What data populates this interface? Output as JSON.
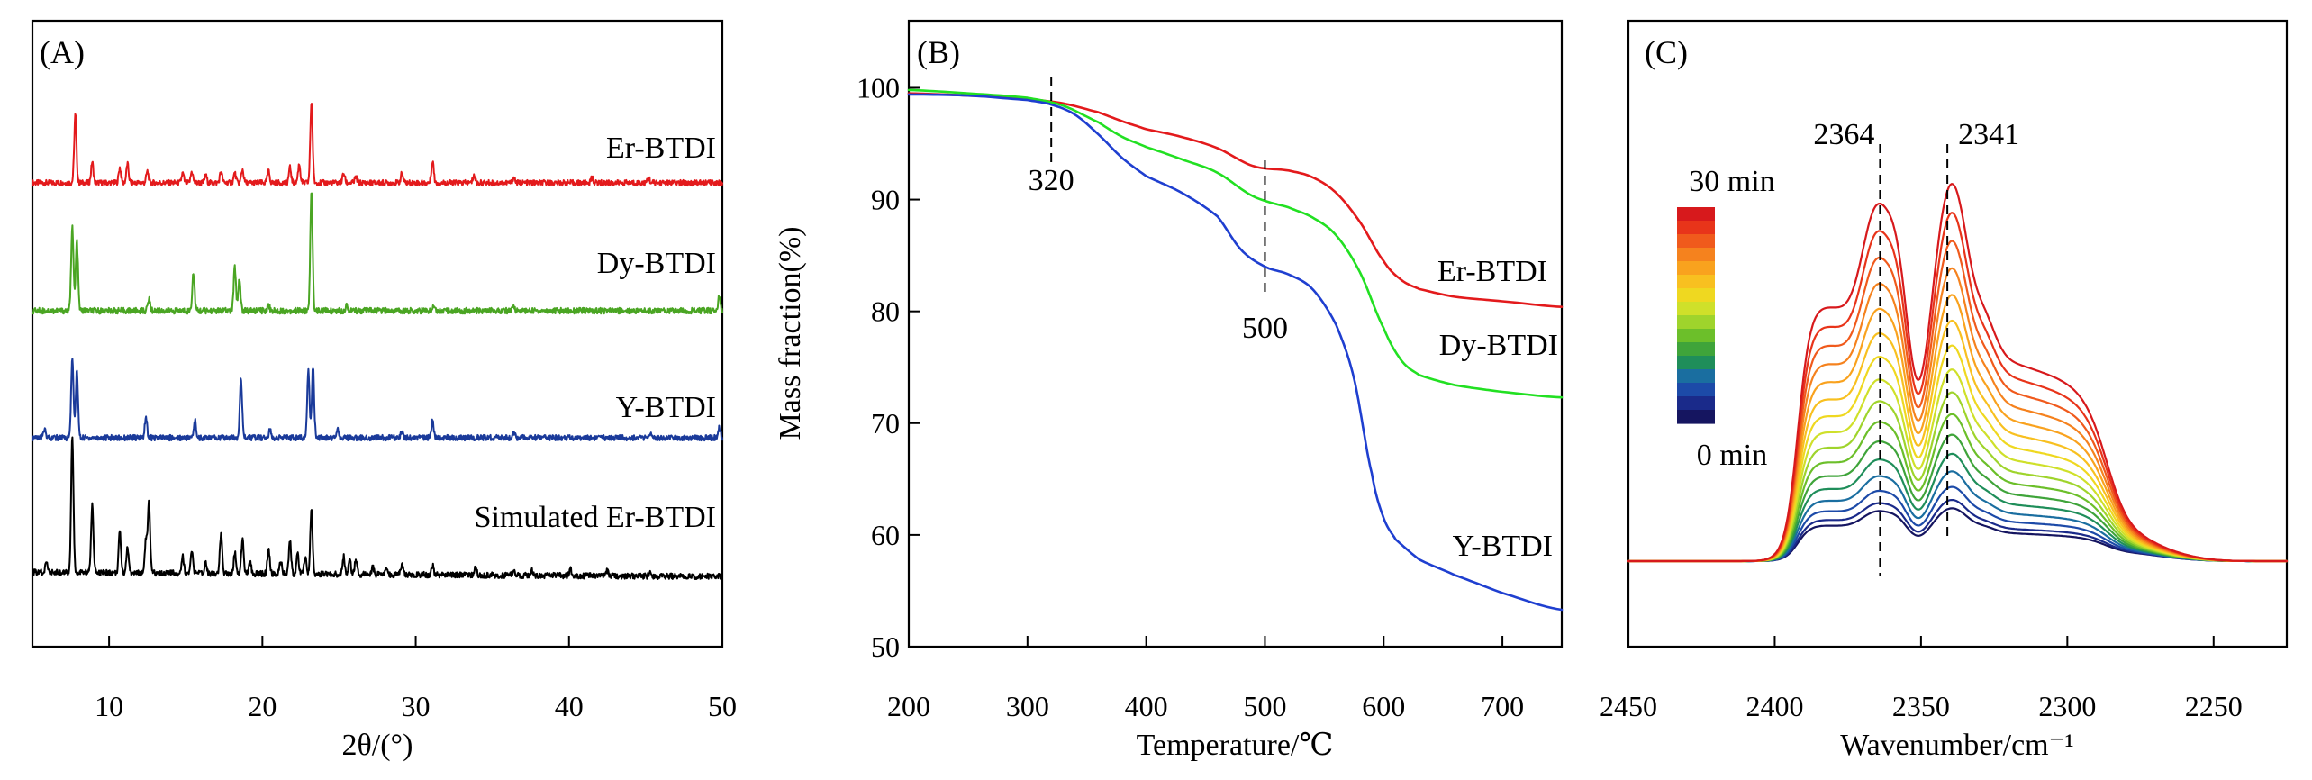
{
  "chart_data": [
    {
      "type": "line",
      "panel_label": "(A)",
      "xlabel": "2θ/(°)",
      "ylabel": "",
      "xlim": [
        5,
        50
      ],
      "xticks": [
        10,
        20,
        30,
        40,
        50
      ],
      "x_tick_labels": [
        "10",
        "20",
        "30",
        "40",
        "50"
      ],
      "yticks_visible": false,
      "series": [
        {
          "name": "Er-BTDI",
          "color": "#e31a1c",
          "baseline": 0.82,
          "peaks": [
            [
              7.8,
              0.72
            ],
            [
              8.9,
              0.22
            ],
            [
              10.7,
              0.16
            ],
            [
              11.2,
              0.2
            ],
            [
              12.5,
              0.12
            ],
            [
              14.8,
              0.1
            ],
            [
              15.4,
              0.12
            ],
            [
              16.3,
              0.08
            ],
            [
              17.3,
              0.12
            ],
            [
              18.2,
              0.1
            ],
            [
              18.7,
              0.14
            ],
            [
              20.4,
              0.12
            ],
            [
              21.8,
              0.16
            ],
            [
              22.4,
              0.2
            ],
            [
              23.2,
              0.86
            ],
            [
              25.3,
              0.1
            ],
            [
              26.1,
              0.06
            ],
            [
              29.1,
              0.1
            ],
            [
              31.1,
              0.24
            ],
            [
              33.8,
              0.08
            ],
            [
              36.4,
              0.06
            ],
            [
              41.5,
              0.05
            ],
            [
              45.2,
              0.05
            ]
          ]
        },
        {
          "name": "Dy-BTDI",
          "color": "#4aa523",
          "baseline": 0.82,
          "peaks": [
            [
              7.6,
              0.86
            ],
            [
              7.9,
              0.7
            ],
            [
              12.6,
              0.12
            ],
            [
              15.5,
              0.38
            ],
            [
              18.2,
              0.44
            ],
            [
              18.5,
              0.32
            ],
            [
              20.4,
              0.06
            ],
            [
              23.2,
              1.2
            ],
            [
              25.5,
              0.06
            ],
            [
              31.2,
              0.06
            ],
            [
              36.4,
              0.04
            ],
            [
              49.8,
              0.14
            ]
          ]
        },
        {
          "name": "Y-BTDI",
          "color": "#1a3a9a",
          "baseline": 0.82,
          "peaks": [
            [
              5.8,
              0.1
            ],
            [
              7.6,
              0.85
            ],
            [
              7.9,
              0.7
            ],
            [
              12.4,
              0.22
            ],
            [
              15.6,
              0.18
            ],
            [
              18.6,
              0.64
            ],
            [
              20.5,
              0.08
            ],
            [
              23.0,
              0.72
            ],
            [
              23.3,
              0.76
            ],
            [
              24.9,
              0.1
            ],
            [
              29.1,
              0.06
            ],
            [
              31.1,
              0.18
            ],
            [
              36.4,
              0.05
            ],
            [
              45.4,
              0.04
            ],
            [
              49.8,
              0.1
            ]
          ]
        },
        {
          "name": "Simulated Er-BTDI",
          "color": "#000000",
          "baseline": 0.6,
          "peaks": [
            [
              5.9,
              0.1
            ],
            [
              7.6,
              1.4
            ],
            [
              8.9,
              0.7
            ],
            [
              10.7,
              0.42
            ],
            [
              11.2,
              0.26
            ],
            [
              12.4,
              0.34
            ],
            [
              12.6,
              0.72
            ],
            [
              14.8,
              0.18
            ],
            [
              15.4,
              0.22
            ],
            [
              16.3,
              0.12
            ],
            [
              17.3,
              0.4
            ],
            [
              18.2,
              0.22
            ],
            [
              18.7,
              0.36
            ],
            [
              19.2,
              0.12
            ],
            [
              20.4,
              0.26
            ],
            [
              21.2,
              0.12
            ],
            [
              21.8,
              0.34
            ],
            [
              22.3,
              0.2
            ],
            [
              22.8,
              0.18
            ],
            [
              23.2,
              0.66
            ],
            [
              25.3,
              0.18
            ],
            [
              25.7,
              0.14
            ],
            [
              26.1,
              0.16
            ],
            [
              27.2,
              0.08
            ],
            [
              28.1,
              0.06
            ],
            [
              29.1,
              0.1
            ],
            [
              31.1,
              0.1
            ],
            [
              33.9,
              0.08
            ],
            [
              36.4,
              0.07
            ],
            [
              37.6,
              0.05
            ],
            [
              40.1,
              0.06
            ],
            [
              42.5,
              0.05
            ],
            [
              45.3,
              0.05
            ]
          ]
        }
      ]
    },
    {
      "type": "line",
      "panel_label": "(B)",
      "xlabel": "Temperature/℃",
      "ylabel": "Mass fraction(%)",
      "xlim": [
        200,
        750
      ],
      "ylim": [
        50,
        106
      ],
      "xticks": [
        200,
        300,
        400,
        500,
        600,
        700
      ],
      "x_tick_labels": [
        "200",
        "300",
        "400",
        "500",
        "600",
        "700"
      ],
      "yticks": [
        50,
        60,
        70,
        80,
        90,
        100
      ],
      "y_tick_labels": [
        "50",
        "60",
        "70",
        "80",
        "90",
        "100"
      ],
      "annotations": [
        {
          "text": "320",
          "x": 320
        },
        {
          "text": "500",
          "x": 500
        }
      ],
      "series": [
        {
          "name": "Er-BTDI",
          "color": "#e31a1c",
          "x": [
            200,
            250,
            300,
            330,
            360,
            380,
            400,
            430,
            460,
            490,
            520,
            540,
            560,
            580,
            600,
            615,
            630,
            660,
            700,
            750
          ],
          "y": [
            99.5,
            99.3,
            99.0,
            98.6,
            97.8,
            97.0,
            96.3,
            95.6,
            94.6,
            93.0,
            92.6,
            92.0,
            90.6,
            88.0,
            84.5,
            82.8,
            82.0,
            81.3,
            80.9,
            80.4
          ]
        },
        {
          "name": "Dy-BTDI",
          "color": "#22e022",
          "x": [
            200,
            250,
            300,
            330,
            360,
            380,
            400,
            430,
            460,
            490,
            520,
            540,
            560,
            580,
            600,
            615,
            630,
            660,
            700,
            750
          ],
          "y": [
            99.8,
            99.5,
            99.1,
            98.4,
            96.9,
            95.6,
            94.7,
            93.6,
            92.4,
            90.3,
            89.3,
            88.4,
            86.8,
            83.5,
            78.5,
            75.6,
            74.3,
            73.4,
            72.8,
            72.3
          ]
        },
        {
          "name": "Y-BTDI",
          "color": "#1f3fd0",
          "x": [
            200,
            250,
            300,
            320,
            340,
            360,
            380,
            400,
            430,
            460,
            480,
            500,
            520,
            540,
            560,
            575,
            590,
            600,
            610,
            630,
            660,
            700,
            750
          ],
          "y": [
            99.4,
            99.3,
            98.9,
            98.5,
            97.6,
            95.8,
            93.7,
            92.1,
            90.6,
            88.5,
            85.5,
            84.0,
            83.3,
            82.0,
            78.8,
            74.0,
            65.5,
            61.5,
            59.6,
            57.8,
            56.4,
            54.8,
            53.3
          ]
        }
      ]
    },
    {
      "type": "line",
      "panel_label": "(C)",
      "xlabel": "Wavenumber/cm⁻¹",
      "ylabel": "",
      "xlim": [
        2450,
        2225
      ],
      "xticks": [
        2450,
        2400,
        2350,
        2300,
        2250
      ],
      "x_tick_labels": [
        "2450",
        "2400",
        "2350",
        "2300",
        "2250"
      ],
      "yticks_visible": false,
      "annotations": [
        {
          "text": "2364",
          "x": 2364
        },
        {
          "text": "2341",
          "x": 2341
        }
      ],
      "colorbar": {
        "top_label": "30 min",
        "bottom_label": "0 min",
        "colors": [
          "#d7191c",
          "#e8341a",
          "#f05a1c",
          "#f5821e",
          "#f9a21e",
          "#f8c020",
          "#efd820",
          "#cfe02a",
          "#9fd42c",
          "#6cbf2a",
          "#3fa43a",
          "#1f8e5a",
          "#1a6ea0",
          "#1c4aa8",
          "#1a2a8a",
          "#151560"
        ]
      },
      "series_count": 16,
      "final_amplitude": 1.0,
      "initial_amplitude": 0.14
    }
  ]
}
